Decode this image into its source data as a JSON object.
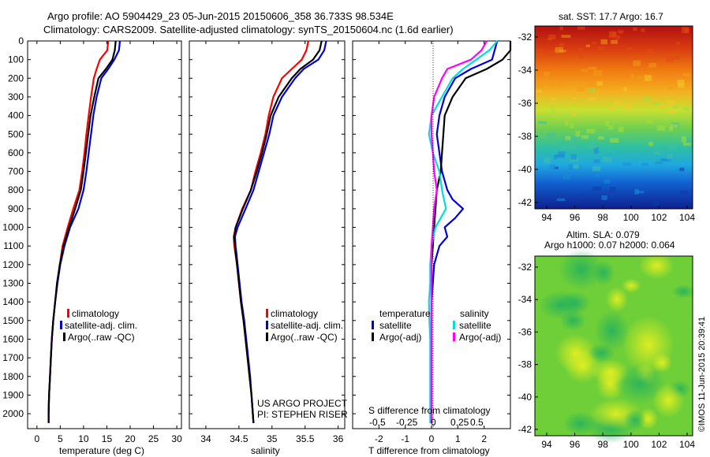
{
  "title_line1": "Argo profile: AO 5904429_23 05-Jun-2015 20150606_358 36.733S 98.534E",
  "title_line2": "Climatology: CARS2009. Satellite-adjusted climatology: synTS_20150604.nc (1.6d earlier)",
  "depth_ticks": [
    "0",
    "100",
    "200",
    "300",
    "400",
    "500",
    "600",
    "700",
    "800",
    "900",
    "1000",
    "1100",
    "1200",
    "1300",
    "1400",
    "1500",
    "1600",
    "1700",
    "1800",
    "1900",
    "2000"
  ],
  "colors": {
    "climatology": "#ff0000",
    "satellite": "#0000dd",
    "argo": "#000000",
    "satellite_s": "#00dddd",
    "argo_s": "#ff00ff"
  },
  "credit": {
    "line1": "US ARGO PROJECT",
    "line2": "PI: STEPHEN RISER"
  },
  "diff_legend": {
    "temperature": "temperature",
    "salinity": "salinity",
    "satellite": "satellite",
    "argo": "Argo(-adj)"
  },
  "diff_inner_label": "S difference from climatology",
  "diff_s_ticks": [
    "-0.5",
    "-0.25",
    "0",
    "0.25",
    "0.5"
  ],
  "sst_map": {
    "title": "sat. SST: 17.7 Argo: 16.7",
    "x_ticks": [
      "94",
      "96",
      "98",
      "100",
      "102",
      "104"
    ],
    "y_ticks": [
      "-32",
      "-34",
      "-36",
      "-38",
      "-40",
      "-42"
    ]
  },
  "sla_map": {
    "title1": "Altim. SLA: 0.079",
    "title2": "Argo h1000: 0.07 h2000: 0.064",
    "x_ticks": [
      "94",
      "96",
      "98",
      "100",
      "102",
      "104"
    ],
    "y_ticks": [
      "-32",
      "-34",
      "-36",
      "-38",
      "-40",
      "-42"
    ]
  },
  "stamp": "©IMOS 11-Jun-2015 20:39:41",
  "chart_data": [
    {
      "type": "line",
      "xlabel": "temperature (deg C)",
      "ylabel": "",
      "xlim": [
        -2,
        31
      ],
      "ylim": [
        2080,
        0
      ],
      "x_ticks": [
        "0",
        "5",
        "10",
        "15",
        "20",
        "25",
        "30"
      ],
      "legend": [
        "climatology",
        "satellite-adj. clim.",
        "Argo(..raw -QC)"
      ],
      "series": [
        {
          "name": "climatology",
          "depth": [
            0,
            50,
            100,
            150,
            200,
            300,
            400,
            500,
            600,
            700,
            800,
            900,
            1000,
            1100,
            1200,
            1300,
            1400,
            1500,
            1600,
            1700,
            1800,
            1900,
            2000,
            2050
          ],
          "values": [
            15.3,
            15.1,
            13.5,
            12.8,
            12.2,
            11.6,
            11.1,
            10.6,
            10.2,
            9.7,
            9.1,
            7.8,
            6.6,
            5.5,
            4.9,
            4.4,
            3.9,
            3.5,
            3.2,
            3.0,
            2.8,
            2.6,
            2.5,
            2.5
          ]
        },
        {
          "name": "satellite-adj. clim.",
          "depth": [
            0,
            50,
            100,
            150,
            200,
            300,
            400,
            500,
            600,
            700,
            800,
            900,
            1000,
            1100,
            1200,
            1300,
            1400,
            1500,
            1600,
            1700,
            1800,
            1900,
            2000,
            2050
          ],
          "values": [
            17.8,
            17.6,
            16.6,
            15.3,
            13.8,
            12.8,
            12.1,
            11.6,
            11.1,
            10.6,
            10.0,
            8.9,
            7.1,
            5.9,
            5.0,
            4.4,
            3.9,
            3.5,
            3.2,
            3.0,
            2.8,
            2.6,
            2.5,
            2.5
          ]
        },
        {
          "name": "Argo(..raw -QC)",
          "depth": [
            0,
            50,
            100,
            150,
            200,
            300,
            400,
            500,
            600,
            700,
            800,
            900,
            1000,
            1100,
            1200,
            1300,
            1400,
            1500,
            1600,
            1700,
            1800,
            1900,
            2000,
            2050
          ],
          "values": [
            16.9,
            16.7,
            16.2,
            14.8,
            13.2,
            12.3,
            11.5,
            11.0,
            10.5,
            10.0,
            9.4,
            8.2,
            6.9,
            5.7,
            4.9,
            4.3,
            3.9,
            3.5,
            3.2,
            3.0,
            2.8,
            2.6,
            2.5,
            2.5
          ]
        }
      ]
    },
    {
      "type": "line",
      "xlabel": "salinity",
      "ylabel": "",
      "xlim": [
        33.75,
        36.1
      ],
      "ylim": [
        2080,
        0
      ],
      "x_ticks": [
        "34",
        "34.5",
        "35",
        "35.5",
        "36"
      ],
      "legend": [
        "climatology",
        "satellite-adj. clim.",
        "Argo(..raw -QC)"
      ],
      "series": [
        {
          "name": "climatology",
          "depth": [
            0,
            50,
            100,
            150,
            200,
            300,
            400,
            500,
            600,
            700,
            800,
            900,
            1000,
            1050,
            1100,
            1200,
            1300,
            1400,
            1500,
            1600,
            1700,
            1800,
            1900,
            2000,
            2050
          ],
          "values": [
            35.55,
            35.52,
            35.45,
            35.3,
            35.15,
            35.02,
            34.95,
            34.9,
            34.83,
            34.75,
            34.68,
            34.55,
            34.45,
            34.42,
            34.43,
            34.47,
            34.5,
            34.53,
            34.57,
            34.6,
            34.63,
            34.66,
            34.69,
            34.71,
            34.72
          ]
        },
        {
          "name": "satellite-adj. clim.",
          "depth": [
            0,
            50,
            100,
            150,
            200,
            300,
            400,
            500,
            600,
            700,
            800,
            900,
            1000,
            1050,
            1100,
            1200,
            1300,
            1400,
            1500,
            1600,
            1700,
            1800,
            1900,
            2000,
            2050
          ],
          "values": [
            35.82,
            35.79,
            35.7,
            35.48,
            35.35,
            35.15,
            35.02,
            34.96,
            34.88,
            34.8,
            34.72,
            34.6,
            34.48,
            34.44,
            34.45,
            34.48,
            34.51,
            34.54,
            34.58,
            34.61,
            34.64,
            34.67,
            34.69,
            34.71,
            34.72
          ]
        },
        {
          "name": "Argo(..raw -QC)",
          "depth": [
            0,
            50,
            100,
            150,
            200,
            300,
            400,
            500,
            600,
            700,
            800,
            900,
            1000,
            1050,
            1100,
            1200,
            1300,
            1400,
            1500,
            1600,
            1700,
            1800,
            1900,
            2000,
            2050
          ],
          "values": [
            35.75,
            35.72,
            35.62,
            35.43,
            35.3,
            35.1,
            34.98,
            34.92,
            34.85,
            34.77,
            34.68,
            34.56,
            34.45,
            34.43,
            34.44,
            34.47,
            34.5,
            34.53,
            34.57,
            34.6,
            34.63,
            34.66,
            34.69,
            34.71,
            34.72
          ]
        }
      ]
    },
    {
      "type": "line",
      "xlabel": "T difference from climatology",
      "ylabel": "",
      "xlim": [
        -3,
        3
      ],
      "ylim": [
        2080,
        0
      ],
      "x_ticks": [
        "-2",
        "-1",
        "0",
        "1",
        "2"
      ],
      "legend": [
        "satellite",
        "Argo(-adj)",
        "satellite",
        "Argo(-adj)"
      ],
      "series": [
        {
          "name": "satellite",
          "depth": [
            0,
            50,
            100,
            150,
            200,
            300,
            400,
            500,
            600,
            700,
            800,
            850,
            900,
            950,
            1000,
            1050,
            1100,
            1200,
            1300,
            1400,
            1500,
            1600,
            1700,
            1800,
            1900,
            2000,
            2050
          ],
          "values": [
            2.5,
            2.4,
            2.3,
            1.5,
            0.9,
            0.5,
            0.3,
            0.2,
            0.3,
            0.4,
            0.6,
            0.8,
            1.2,
            0.9,
            0.5,
            0.6,
            0.3,
            0.1,
            0.05,
            0.0,
            0.0,
            0.0,
            0.0,
            0.0,
            0.0,
            0.0,
            0.0
          ]
        },
        {
          "name": "Argo(-adj)",
          "depth": [
            0,
            50,
            100,
            150,
            200,
            300,
            400,
            500,
            600,
            700,
            800,
            900,
            1000,
            1100,
            1200,
            1300,
            1400,
            1500,
            1600,
            1700,
            1800,
            1900,
            2000,
            2050
          ],
          "values": [
            3.2,
            3.0,
            2.7,
            2.1,
            1.3,
            0.8,
            0.5,
            0.45,
            0.4,
            0.35,
            0.2,
            0.15,
            0.1,
            0.05,
            0.0,
            0.0,
            0.0,
            0.0,
            0.0,
            0.0,
            0.0,
            0.0,
            0.0,
            0.0
          ]
        },
        {
          "name": "satellite",
          "depth": [
            0,
            50,
            100,
            150,
            200,
            300,
            400,
            500,
            600,
            700,
            800,
            900,
            1000,
            1100,
            1200,
            1300,
            1400,
            1500,
            1600,
            1700,
            1800,
            1900,
            2000,
            2050
          ],
          "values": [
            2.5,
            2.2,
            1.7,
            1.2,
            0.8,
            0.4,
            0.0,
            -0.1,
            0.05,
            0.3,
            0.4,
            0.55,
            0.15,
            0.0,
            -0.05,
            -0.05,
            -0.1,
            -0.08,
            -0.05,
            -0.05,
            -0.05,
            -0.05,
            -0.05,
            -0.05
          ]
        },
        {
          "name": "Argo(-adj)",
          "depth": [
            0,
            50,
            100,
            150,
            200,
            300,
            400,
            500,
            600,
            700,
            800,
            900,
            1000,
            1100,
            1200,
            1300,
            1400,
            1500,
            1600,
            1700,
            1800,
            1900,
            2000,
            2050
          ],
          "values": [
            2.1,
            1.9,
            1.5,
            0.6,
            0.4,
            0.1,
            0.0,
            0.0,
            0.05,
            0.1,
            0.2,
            0.1,
            0.05,
            0.0,
            0.0,
            0.0,
            0.0,
            0.0,
            0.0,
            0.0,
            0.0,
            0.0,
            0.0,
            0.0
          ]
        }
      ]
    }
  ]
}
